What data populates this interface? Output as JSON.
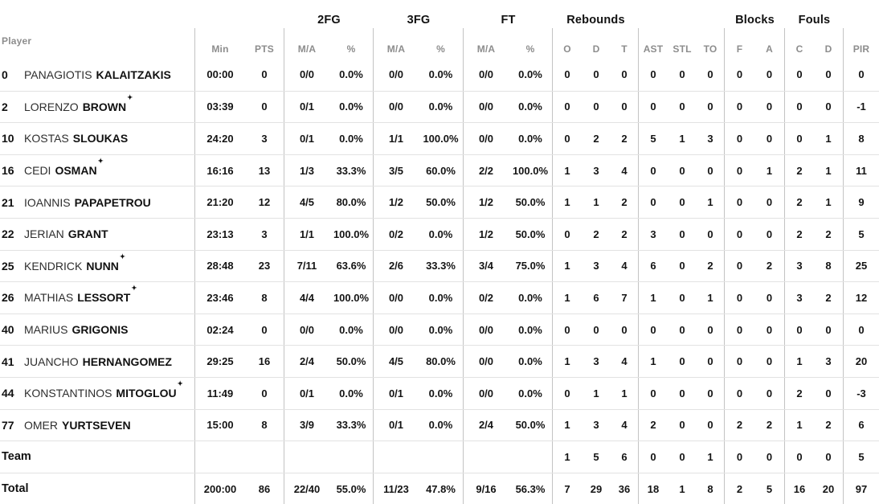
{
  "colors": {
    "background": "#ffffff",
    "text": "#141414",
    "muted_header": "#8d8d8d",
    "horizontal_divider": "#e2e2e2",
    "vertical_divider": "#c3c3c3"
  },
  "icons": {
    "starter_star": "✦"
  },
  "table": {
    "group_headers": [
      {
        "label": "",
        "span": 3
      },
      {
        "label": "2FG",
        "span": 2
      },
      {
        "label": "3FG",
        "span": 2
      },
      {
        "label": "FT",
        "span": 2
      },
      {
        "label": "Rebounds",
        "span": 3
      },
      {
        "label": "",
        "span": 3
      },
      {
        "label": "Blocks",
        "span": 2
      },
      {
        "label": "Fouls",
        "span": 2
      },
      {
        "label": "",
        "span": 1
      }
    ],
    "sub_headers": [
      "Player",
      "Min",
      "PTS",
      "M/A",
      "%",
      "M/A",
      "%",
      "M/A",
      "%",
      "O",
      "D",
      "T",
      "AST",
      "STL",
      "TO",
      "F",
      "A",
      "C",
      "D",
      "PIR"
    ],
    "rows": [
      {
        "number": "0",
        "first": "PANAGIOTIS",
        "last": "KALAITZAKIS",
        "starter": false,
        "stats": [
          "00:00",
          "0",
          "0/0",
          "0.0%",
          "0/0",
          "0.0%",
          "0/0",
          "0.0%",
          "0",
          "0",
          "0",
          "0",
          "0",
          "0",
          "0",
          "0",
          "0",
          "0",
          "0"
        ]
      },
      {
        "number": "2",
        "first": "LORENZO",
        "last": "BROWN",
        "starter": true,
        "stats": [
          "03:39",
          "0",
          "0/1",
          "0.0%",
          "0/0",
          "0.0%",
          "0/0",
          "0.0%",
          "0",
          "0",
          "0",
          "0",
          "0",
          "0",
          "0",
          "0",
          "0",
          "0",
          "-1"
        ]
      },
      {
        "number": "10",
        "first": "KOSTAS",
        "last": "SLOUKAS",
        "starter": false,
        "stats": [
          "24:20",
          "3",
          "0/1",
          "0.0%",
          "1/1",
          "100.0%",
          "0/0",
          "0.0%",
          "0",
          "2",
          "2",
          "5",
          "1",
          "3",
          "0",
          "0",
          "0",
          "1",
          "8"
        ]
      },
      {
        "number": "16",
        "first": "CEDI",
        "last": "OSMAN",
        "starter": true,
        "stats": [
          "16:16",
          "13",
          "1/3",
          "33.3%",
          "3/5",
          "60.0%",
          "2/2",
          "100.0%",
          "1",
          "3",
          "4",
          "0",
          "0",
          "0",
          "0",
          "1",
          "2",
          "1",
          "11"
        ]
      },
      {
        "number": "21",
        "first": "IOANNIS",
        "last": "PAPAPETROU",
        "starter": false,
        "stats": [
          "21:20",
          "12",
          "4/5",
          "80.0%",
          "1/2",
          "50.0%",
          "1/2",
          "50.0%",
          "1",
          "1",
          "2",
          "0",
          "0",
          "1",
          "0",
          "0",
          "2",
          "1",
          "9"
        ]
      },
      {
        "number": "22",
        "first": "JERIAN",
        "last": "GRANT",
        "starter": false,
        "stats": [
          "23:13",
          "3",
          "1/1",
          "100.0%",
          "0/2",
          "0.0%",
          "1/2",
          "50.0%",
          "0",
          "2",
          "2",
          "3",
          "0",
          "0",
          "0",
          "0",
          "2",
          "2",
          "5"
        ]
      },
      {
        "number": "25",
        "first": "KENDRICK",
        "last": "NUNN",
        "starter": true,
        "stats": [
          "28:48",
          "23",
          "7/11",
          "63.6%",
          "2/6",
          "33.3%",
          "3/4",
          "75.0%",
          "1",
          "3",
          "4",
          "6",
          "0",
          "2",
          "0",
          "2",
          "3",
          "8",
          "25"
        ]
      },
      {
        "number": "26",
        "first": "MATHIAS",
        "last": "LESSORT",
        "starter": true,
        "stats": [
          "23:46",
          "8",
          "4/4",
          "100.0%",
          "0/0",
          "0.0%",
          "0/2",
          "0.0%",
          "1",
          "6",
          "7",
          "1",
          "0",
          "1",
          "0",
          "0",
          "3",
          "2",
          "12"
        ]
      },
      {
        "number": "40",
        "first": "MARIUS",
        "last": "GRIGONIS",
        "starter": false,
        "stats": [
          "02:24",
          "0",
          "0/0",
          "0.0%",
          "0/0",
          "0.0%",
          "0/0",
          "0.0%",
          "0",
          "0",
          "0",
          "0",
          "0",
          "0",
          "0",
          "0",
          "0",
          "0",
          "0"
        ]
      },
      {
        "number": "41",
        "first": "JUANCHO",
        "last": "HERNANGOMEZ",
        "starter": false,
        "stats": [
          "29:25",
          "16",
          "2/4",
          "50.0%",
          "4/5",
          "80.0%",
          "0/0",
          "0.0%",
          "1",
          "3",
          "4",
          "1",
          "0",
          "0",
          "0",
          "0",
          "1",
          "3",
          "20"
        ]
      },
      {
        "number": "44",
        "first": "KONSTANTINOS",
        "last": "MITOGLOU",
        "starter": true,
        "stats": [
          "11:49",
          "0",
          "0/1",
          "0.0%",
          "0/1",
          "0.0%",
          "0/0",
          "0.0%",
          "0",
          "1",
          "1",
          "0",
          "0",
          "0",
          "0",
          "0",
          "2",
          "0",
          "-3"
        ]
      },
      {
        "number": "77",
        "first": "OMER",
        "last": "YURTSEVEN",
        "starter": false,
        "stats": [
          "15:00",
          "8",
          "3/9",
          "33.3%",
          "0/1",
          "0.0%",
          "2/4",
          "50.0%",
          "1",
          "3",
          "4",
          "2",
          "0",
          "0",
          "2",
          "2",
          "1",
          "2",
          "6"
        ]
      }
    ],
    "team_row": {
      "label": "Team",
      "stats": [
        "",
        "",
        "",
        "",
        "",
        "",
        "",
        "",
        "1",
        "5",
        "6",
        "0",
        "0",
        "1",
        "0",
        "0",
        "0",
        "0",
        "5"
      ]
    },
    "total_row": {
      "label": "Total",
      "stats": [
        "200:00",
        "86",
        "22/40",
        "55.0%",
        "11/23",
        "47.8%",
        "9/16",
        "56.3%",
        "7",
        "29",
        "36",
        "18",
        "1",
        "8",
        "2",
        "5",
        "16",
        "20",
        "97"
      ]
    }
  }
}
